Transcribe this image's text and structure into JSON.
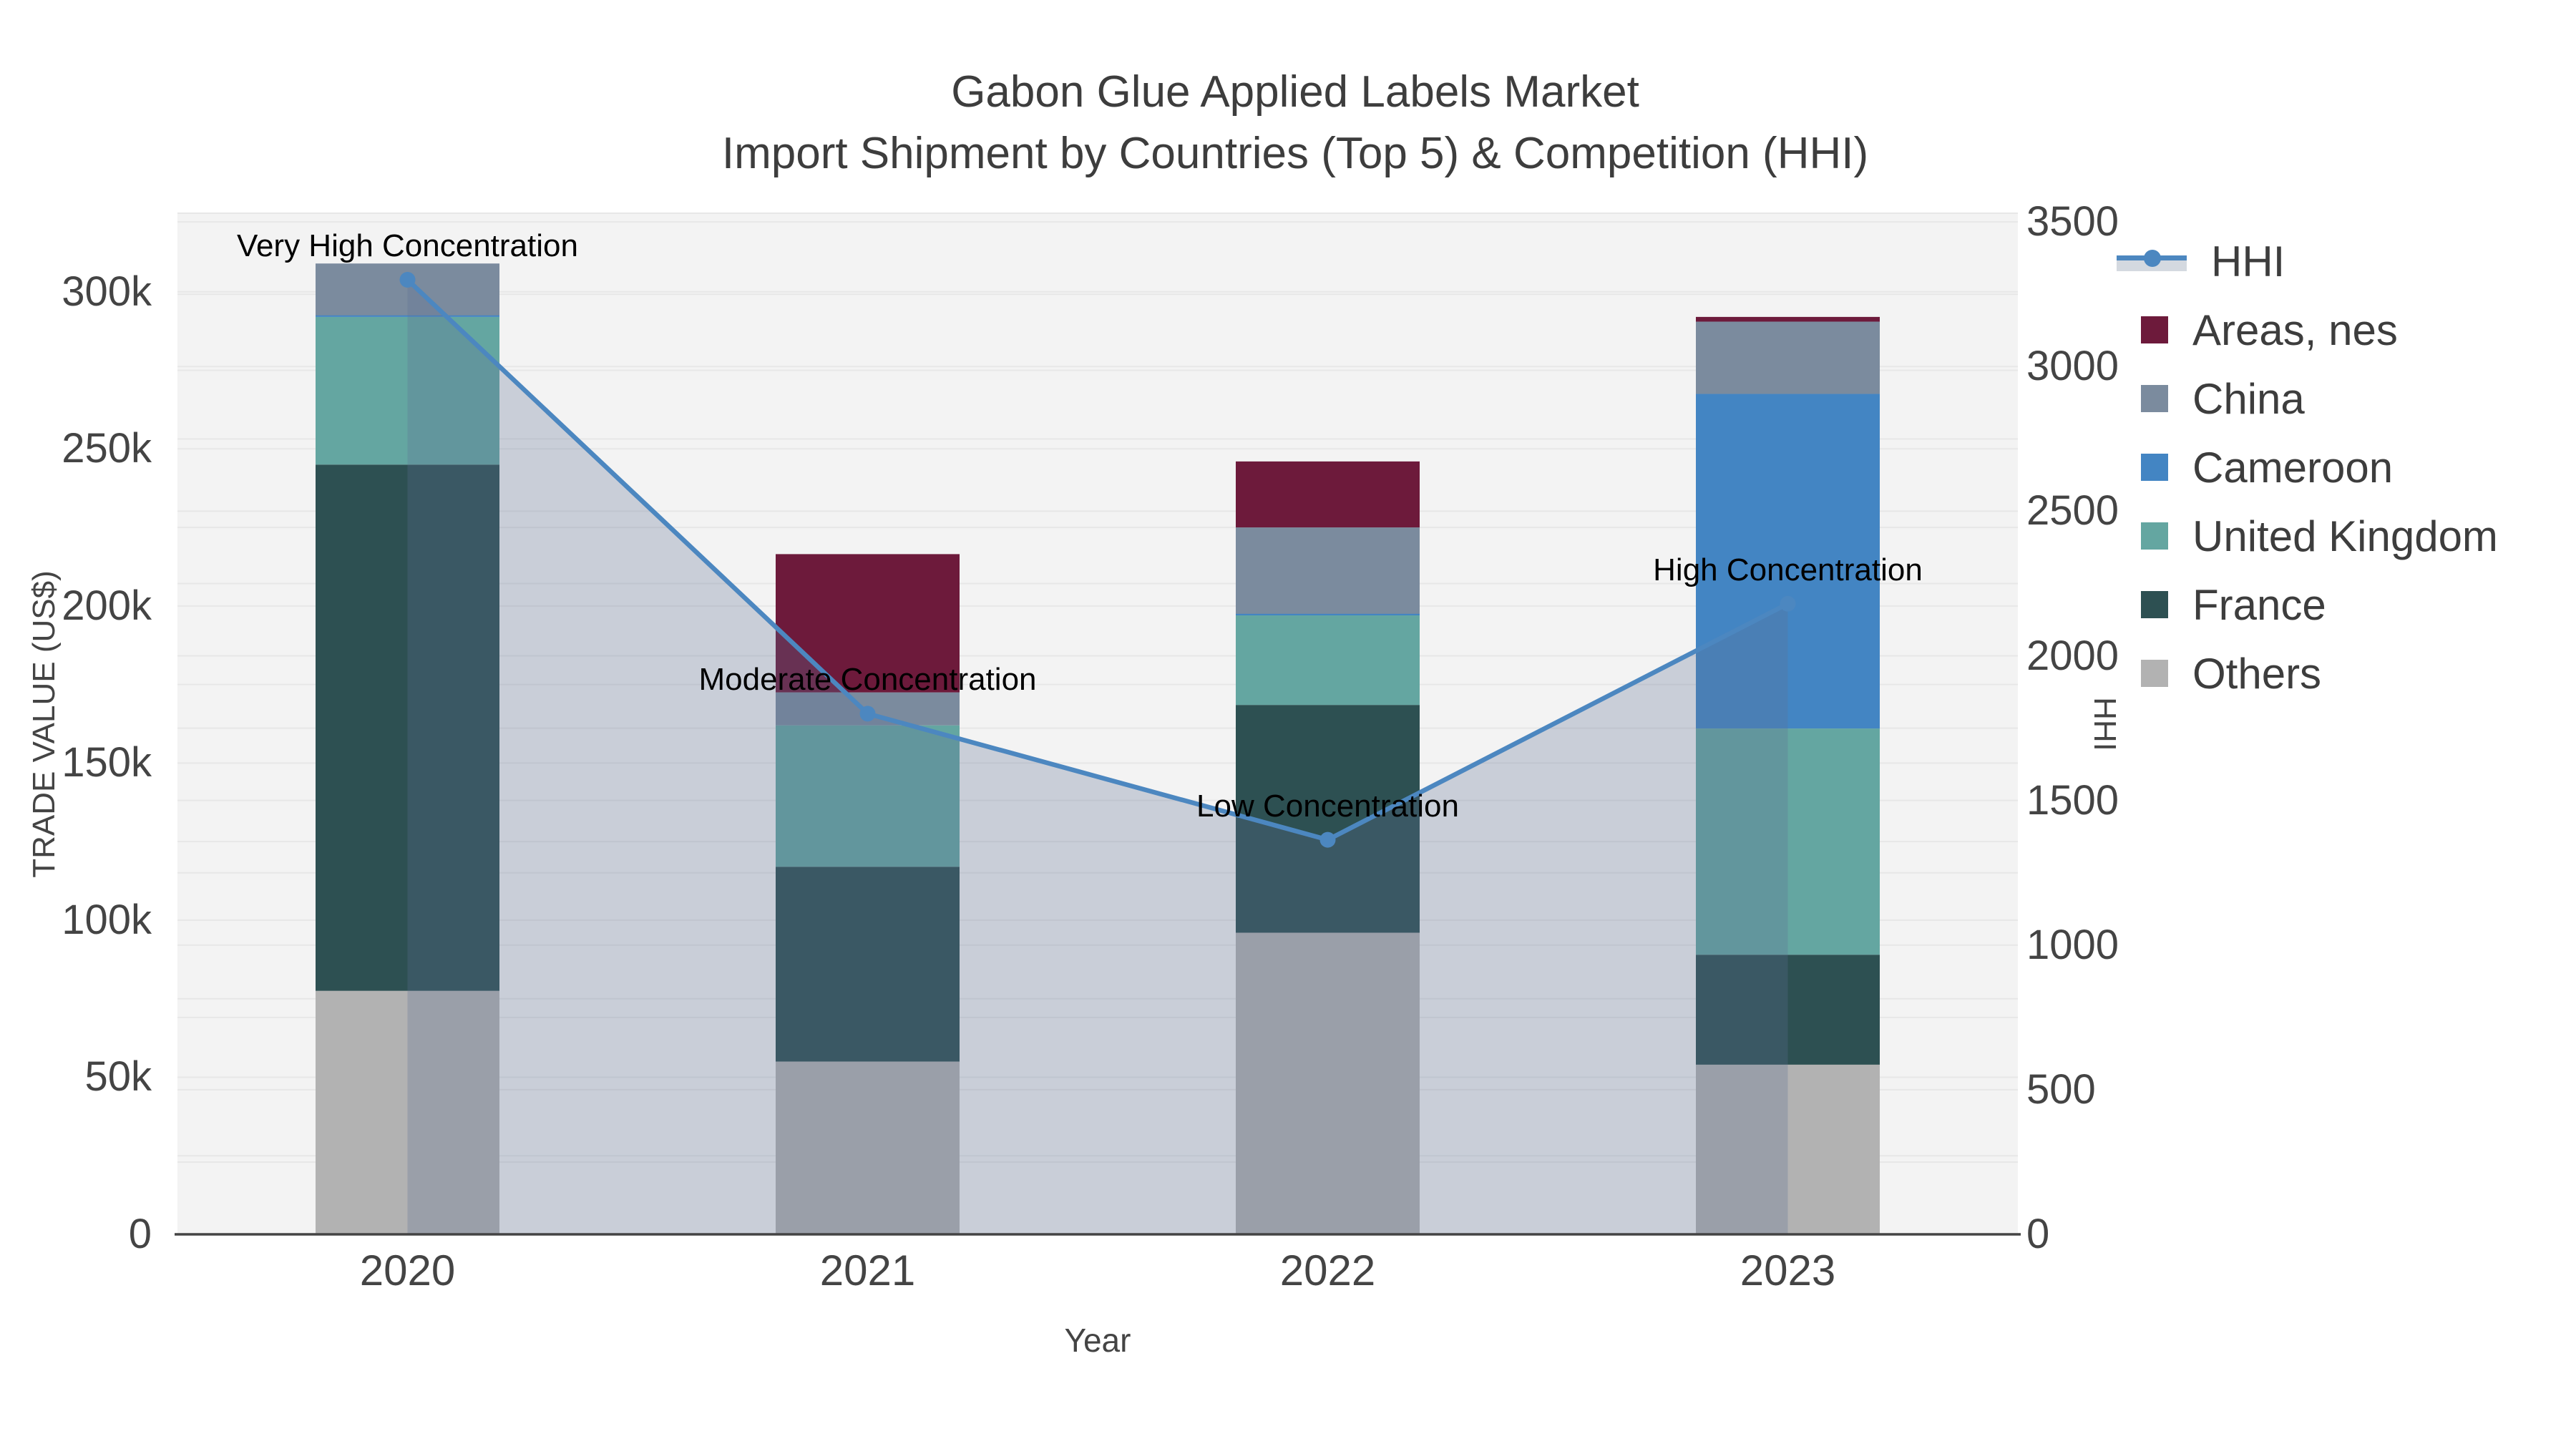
{
  "title": {
    "line1": "Gabon Glue Applied Labels Market",
    "line2": "Import Shipment by Countries (Top 5) & Competition (HHI)"
  },
  "chart_data": {
    "type": "bar+line",
    "stacked": true,
    "categories": [
      "2020",
      "2021",
      "2022",
      "2023"
    ],
    "xlabel": "Year",
    "ylabel_left": "TRADE VALUE (US$)",
    "ylabel_right": "HHI",
    "y_left_ticks": [
      "0",
      "50k",
      "100k",
      "150k",
      "200k",
      "250k",
      "300k"
    ],
    "y_left_tick_values": [
      0,
      50000,
      100000,
      150000,
      200000,
      250000,
      300000
    ],
    "ylim_left": [
      0,
      325000
    ],
    "y_right_ticks": [
      "0",
      "500",
      "1000",
      "1500",
      "2000",
      "2500",
      "3000",
      "3500"
    ],
    "y_right_tick_values": [
      0,
      500,
      1000,
      1500,
      2000,
      2500,
      3000,
      3500
    ],
    "ylim_right": [
      0,
      3530
    ],
    "grid": "on",
    "legend_position": "right",
    "series": [
      {
        "name": "Others",
        "color": "#b2b2b2",
        "values": [
          77500,
          55000,
          96000,
          54000
        ]
      },
      {
        "name": "France",
        "color": "#2d5052",
        "values": [
          167500,
          62000,
          72500,
          35000
        ]
      },
      {
        "name": "United Kingdom",
        "color": "#64a6a1",
        "values": [
          47000,
          45000,
          28500,
          72000
        ]
      },
      {
        "name": "Cameroon",
        "color": "#4385c3",
        "values": [
          500,
          0,
          500,
          106500
        ]
      },
      {
        "name": "China",
        "color": "#7b8b9e",
        "values": [
          16500,
          10500,
          27500,
          23000
        ]
      },
      {
        "name": "Areas, nes",
        "color": "#6d1a3b",
        "values": [
          0,
          44000,
          21000,
          1500
        ]
      }
    ],
    "line_series": {
      "name": "HHI",
      "axis": "right",
      "color": "#4c87c0",
      "area_fill": "rgba(93,111,147,0.28)",
      "values": [
        3300,
        1800,
        1364,
        2180
      ]
    },
    "annotations": [
      {
        "text": "Very High Concentration",
        "category": "2020"
      },
      {
        "text": "Moderate Concentration",
        "category": "2021"
      },
      {
        "text": "Low Concentration",
        "category": "2022"
      },
      {
        "text": "High Concentration",
        "category": "2023"
      }
    ],
    "colors": {
      "plot_bg": "#f3f3f3",
      "grid": "#e7e7e7",
      "axis_line": "#444444",
      "axis_text": "#444444",
      "title_text": "#3d3d3d",
      "annotation_text": "#000000"
    }
  }
}
